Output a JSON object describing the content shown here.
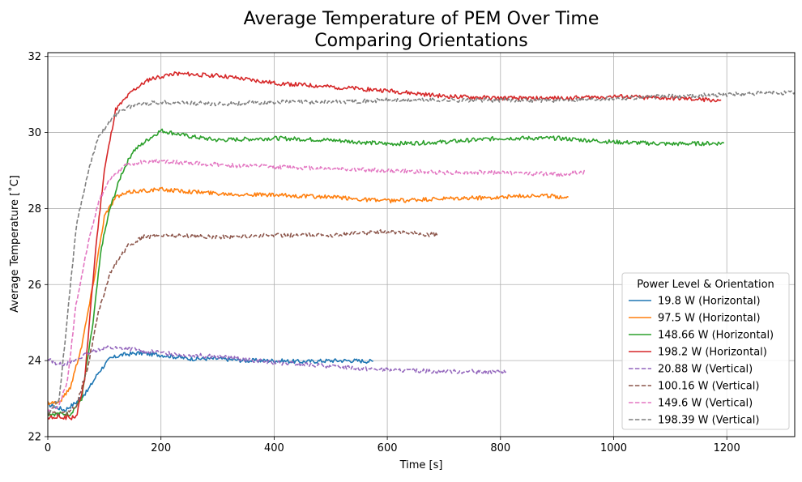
{
  "chart_data": {
    "type": "line",
    "title": [
      "Average Temperature of PEM Over Time",
      "Comparing Orientations"
    ],
    "xlabel": "Time [s]",
    "ylabel": "Average Temperature [˚C]",
    "xlim": [
      0,
      1320
    ],
    "ylim": [
      22,
      32.1
    ],
    "xticks": [
      0,
      200,
      400,
      600,
      800,
      1000,
      1200
    ],
    "yticks": [
      22,
      24,
      26,
      28,
      30,
      32
    ],
    "xtick_labels": [
      "0",
      "200",
      "400",
      "600",
      "800",
      "1000",
      "1200"
    ],
    "ytick_labels": [
      "22",
      "24",
      "26",
      "28",
      "30",
      "32"
    ],
    "grid": true,
    "legend": {
      "title": "Power Level & Orientation",
      "placement": "lower-right"
    },
    "series": [
      {
        "name": "19.8 W (Horizontal)",
        "color": "#1f77b4",
        "dash": "solid",
        "points": [
          [
            0,
            22.85
          ],
          [
            30,
            22.7
          ],
          [
            50,
            22.9
          ],
          [
            70,
            23.2
          ],
          [
            90,
            23.7
          ],
          [
            110,
            24.05
          ],
          [
            130,
            24.15
          ],
          [
            160,
            24.2
          ],
          [
            200,
            24.15
          ],
          [
            250,
            24.05
          ],
          [
            300,
            24.05
          ],
          [
            350,
            24.0
          ],
          [
            400,
            24.0
          ],
          [
            450,
            23.97
          ],
          [
            500,
            24.0
          ],
          [
            540,
            24.0
          ],
          [
            575,
            23.98
          ]
        ]
      },
      {
        "name": "97.5 W (Horizontal)",
        "color": "#ff7f0e",
        "dash": "solid",
        "points": [
          [
            0,
            22.9
          ],
          [
            20,
            22.9
          ],
          [
            40,
            23.3
          ],
          [
            60,
            24.4
          ],
          [
            80,
            26.0
          ],
          [
            100,
            27.8
          ],
          [
            120,
            28.3
          ],
          [
            150,
            28.45
          ],
          [
            200,
            28.5
          ],
          [
            300,
            28.4
          ],
          [
            400,
            28.35
          ],
          [
            500,
            28.3
          ],
          [
            600,
            28.2
          ],
          [
            700,
            28.25
          ],
          [
            800,
            28.3
          ],
          [
            860,
            28.35
          ],
          [
            920,
            28.3
          ]
        ]
      },
      {
        "name": "148.66 W (Horizontal)",
        "color": "#2ca02c",
        "dash": "solid",
        "points": [
          [
            0,
            22.6
          ],
          [
            40,
            22.6
          ],
          [
            60,
            23.0
          ],
          [
            80,
            25.0
          ],
          [
            95,
            27.0
          ],
          [
            110,
            28.0
          ],
          [
            130,
            28.9
          ],
          [
            150,
            29.5
          ],
          [
            180,
            29.85
          ],
          [
            200,
            30.05
          ],
          [
            250,
            29.9
          ],
          [
            300,
            29.8
          ],
          [
            400,
            29.85
          ],
          [
            500,
            29.8
          ],
          [
            600,
            29.7
          ],
          [
            700,
            29.75
          ],
          [
            800,
            29.85
          ],
          [
            900,
            29.85
          ],
          [
            1000,
            29.75
          ],
          [
            1100,
            29.7
          ],
          [
            1195,
            29.72
          ]
        ]
      },
      {
        "name": "198.2 W (Horizontal)",
        "color": "#d62728",
        "dash": "solid",
        "points": [
          [
            0,
            22.5
          ],
          [
            20,
            22.5
          ],
          [
            50,
            22.5
          ],
          [
            65,
            23.5
          ],
          [
            85,
            27.0
          ],
          [
            100,
            29.0
          ],
          [
            120,
            30.6
          ],
          [
            150,
            31.1
          ],
          [
            180,
            31.4
          ],
          [
            220,
            31.55
          ],
          [
            300,
            31.5
          ],
          [
            350,
            31.4
          ],
          [
            400,
            31.3
          ],
          [
            500,
            31.2
          ],
          [
            600,
            31.1
          ],
          [
            700,
            30.95
          ],
          [
            800,
            30.9
          ],
          [
            900,
            30.9
          ],
          [
            1000,
            30.95
          ],
          [
            1100,
            30.9
          ],
          [
            1190,
            30.85
          ]
        ]
      },
      {
        "name": "20.88 W (Vertical)",
        "color": "#9467bd",
        "dash": "dashed",
        "points": [
          [
            0,
            24.05
          ],
          [
            20,
            23.9
          ],
          [
            40,
            23.95
          ],
          [
            60,
            24.1
          ],
          [
            80,
            24.25
          ],
          [
            100,
            24.35
          ],
          [
            150,
            24.3
          ],
          [
            200,
            24.2
          ],
          [
            300,
            24.1
          ],
          [
            400,
            23.95
          ],
          [
            500,
            23.85
          ],
          [
            600,
            23.75
          ],
          [
            700,
            23.72
          ],
          [
            810,
            23.7
          ]
        ]
      },
      {
        "name": "100.16 W (Vertical)",
        "color": "#8c564b",
        "dash": "dashed",
        "points": [
          [
            0,
            22.6
          ],
          [
            30,
            22.6
          ],
          [
            50,
            22.8
          ],
          [
            70,
            23.8
          ],
          [
            90,
            25.3
          ],
          [
            110,
            26.3
          ],
          [
            140,
            27.0
          ],
          [
            170,
            27.25
          ],
          [
            200,
            27.3
          ],
          [
            300,
            27.25
          ],
          [
            400,
            27.3
          ],
          [
            500,
            27.3
          ],
          [
            600,
            27.4
          ],
          [
            690,
            27.3
          ]
        ]
      },
      {
        "name": "149.6 W (Vertical)",
        "color": "#e377c2",
        "dash": "dashed",
        "points": [
          [
            0,
            22.7
          ],
          [
            20,
            22.8
          ],
          [
            35,
            23.5
          ],
          [
            50,
            25.5
          ],
          [
            70,
            27.0
          ],
          [
            90,
            28.2
          ],
          [
            110,
            28.8
          ],
          [
            140,
            29.15
          ],
          [
            180,
            29.25
          ],
          [
            250,
            29.2
          ],
          [
            300,
            29.15
          ],
          [
            400,
            29.1
          ],
          [
            500,
            29.05
          ],
          [
            600,
            29.0
          ],
          [
            700,
            28.95
          ],
          [
            800,
            28.95
          ],
          [
            900,
            28.9
          ],
          [
            950,
            28.95
          ]
        ]
      },
      {
        "name": "198.39 W (Vertical)",
        "color": "#7f7f7f",
        "dash": "dashed",
        "points": [
          [
            0,
            22.6
          ],
          [
            20,
            23.0
          ],
          [
            35,
            25.2
          ],
          [
            50,
            27.5
          ],
          [
            70,
            28.9
          ],
          [
            90,
            29.9
          ],
          [
            110,
            30.3
          ],
          [
            130,
            30.6
          ],
          [
            160,
            30.75
          ],
          [
            200,
            30.8
          ],
          [
            300,
            30.75
          ],
          [
            400,
            30.8
          ],
          [
            500,
            30.8
          ],
          [
            600,
            30.85
          ],
          [
            700,
            30.85
          ],
          [
            800,
            30.85
          ],
          [
            900,
            30.85
          ],
          [
            1000,
            30.9
          ],
          [
            1100,
            30.95
          ],
          [
            1200,
            31.0
          ],
          [
            1320,
            31.05
          ]
        ]
      }
    ]
  }
}
